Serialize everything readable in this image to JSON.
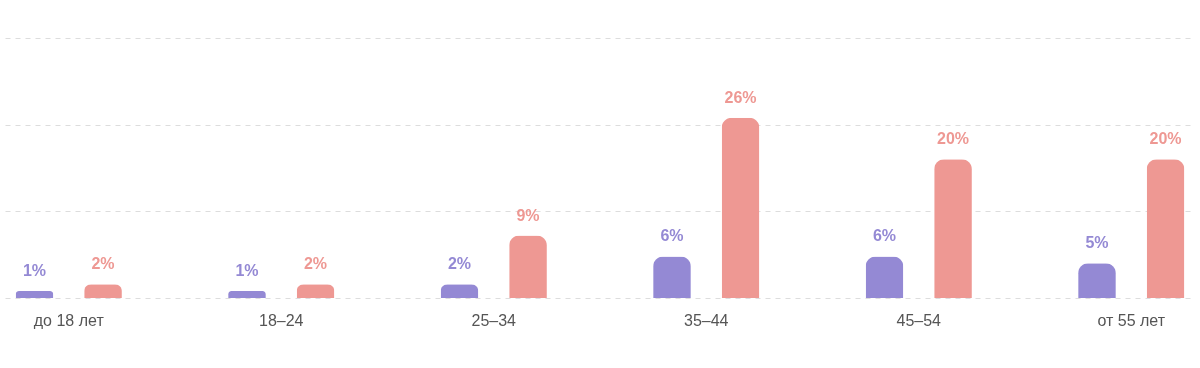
{
  "chart_data": {
    "type": "bar",
    "categories": [
      "до 18 лет",
      "18–24",
      "25–34",
      "35–44",
      "45–54",
      "от 55 лет"
    ],
    "series": [
      {
        "color": "#9489d4",
        "values": [
          1,
          1,
          2,
          6,
          6,
          5
        ],
        "value_labels": [
          "1%",
          "1%",
          "2%",
          "6%",
          "6%",
          "5%"
        ]
      },
      {
        "color": "#ee9893",
        "values": [
          2,
          2,
          9,
          26,
          20,
          20
        ],
        "value_labels": [
          "2%",
          "2%",
          "9%",
          "26%",
          "20%",
          "20%"
        ]
      }
    ],
    "ylim": [
      0,
      37.5
    ],
    "yticks": [
      {
        "value": 0,
        "label": null
      },
      {
        "value": 12.5,
        "label": null
      },
      {
        "value": 25,
        "label": null
      },
      {
        "value": 37.5,
        "label": null
      }
    ],
    "grid": "y",
    "tick_labels": "x",
    "legend": false
  }
}
